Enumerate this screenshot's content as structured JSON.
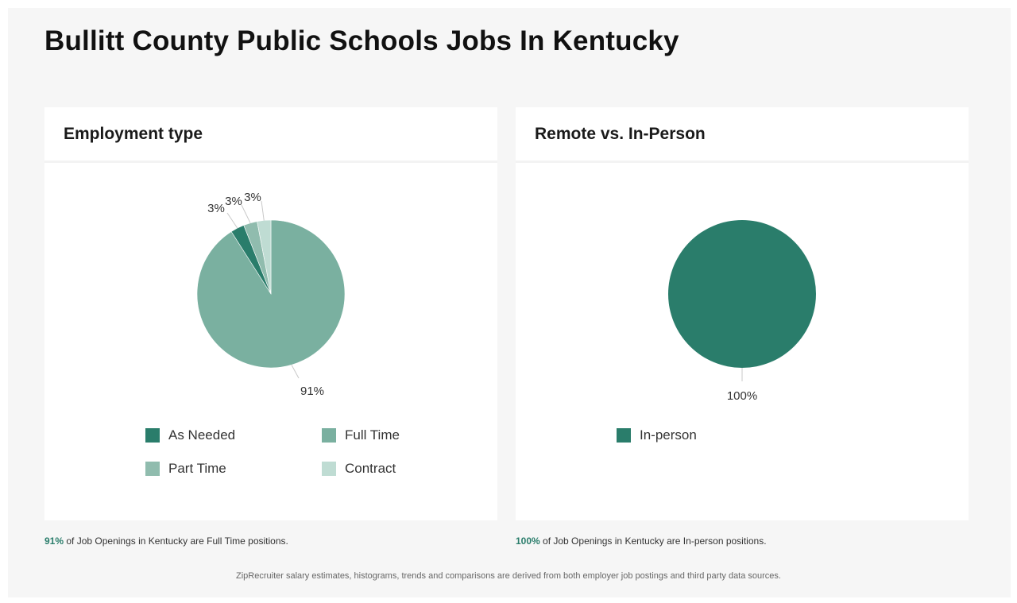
{
  "page": {
    "title": "Bullitt County Public Schools Jobs In Kentucky",
    "footnote": "ZipRecruiter salary estimates, histograms, trends and comparisons are derived from both employer job postings and third party data sources."
  },
  "colors": {
    "as_needed": "#2a7d6b",
    "full_time": "#7ab0a0",
    "part_time": "#90bcae",
    "contract": "#bfdcd3",
    "in_person": "#2a7d6b",
    "highlight": "#2a7d6b"
  },
  "employment": {
    "card_title": "Employment type",
    "caption_value": "91%",
    "caption_rest": " of Job Openings in Kentucky are Full Time positions.",
    "legend": [
      {
        "label": "As Needed",
        "color": "#2a7d6b"
      },
      {
        "label": "Full Time",
        "color": "#7ab0a0"
      },
      {
        "label": "Part Time",
        "color": "#90bcae"
      },
      {
        "label": "Contract",
        "color": "#bfdcd3"
      }
    ]
  },
  "remote": {
    "card_title": "Remote vs. In-Person",
    "caption_value": "100%",
    "caption_rest": " of Job Openings in Kentucky are In-person positions.",
    "legend": [
      {
        "label": "In-person",
        "color": "#2a7d6b"
      }
    ]
  },
  "chart_data": [
    {
      "type": "pie",
      "title": "Employment type",
      "categories": [
        "Full Time",
        "As Needed",
        "Part Time",
        "Contract"
      ],
      "values": [
        91,
        3,
        3,
        3
      ],
      "labels": [
        "91%",
        "3%",
        "3%",
        "3%"
      ],
      "colors": [
        "#7ab0a0",
        "#2a7d6b",
        "#90bcae",
        "#bfdcd3"
      ]
    },
    {
      "type": "pie",
      "title": "Remote vs. In-Person",
      "categories": [
        "In-person"
      ],
      "values": [
        100
      ],
      "labels": [
        "100%"
      ],
      "colors": [
        "#2a7d6b"
      ]
    }
  ]
}
